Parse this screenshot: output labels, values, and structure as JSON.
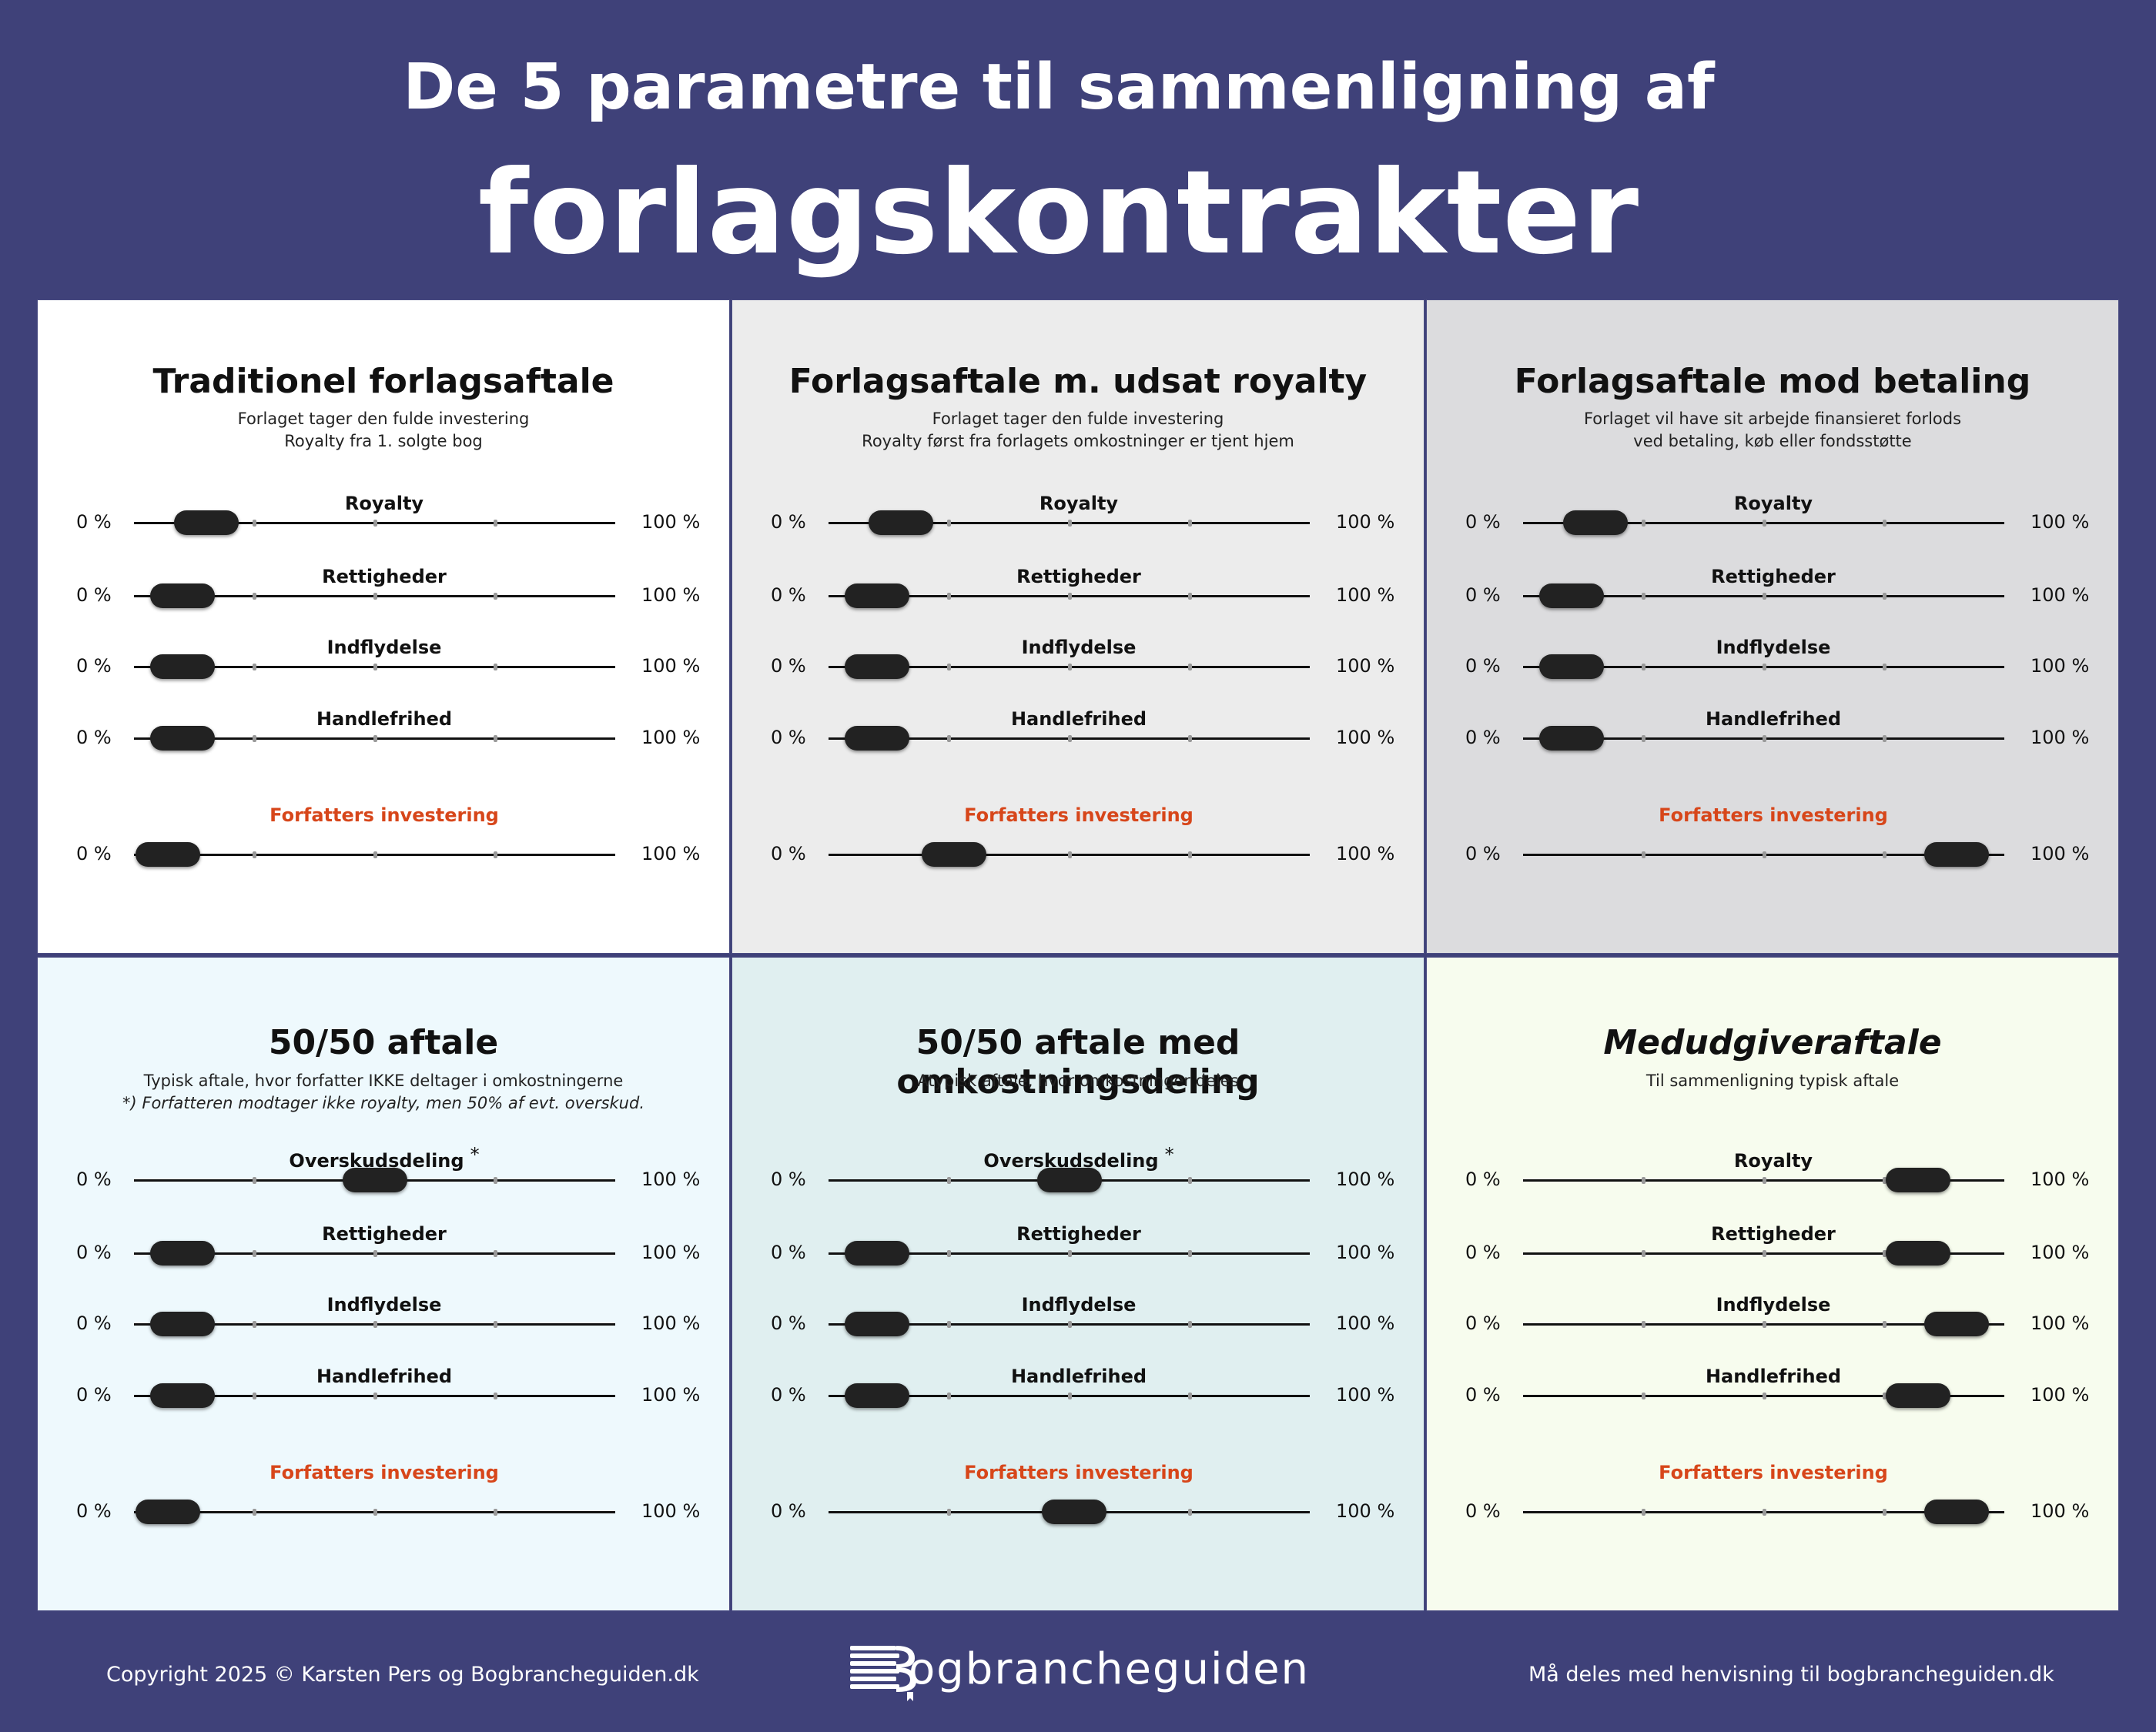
{
  "header": {
    "subtitle": "De 5 parametre til sammenligning af",
    "title": "forlagskontrakter"
  },
  "labels": {
    "zero": "0 %",
    "hundred": "100 %"
  },
  "panels": [
    {
      "title": "Traditionel forlagsaftale",
      "desc1": "Forlaget tager den fulde investering",
      "desc2": "Royalty fra 1. solgte bog",
      "bg": "#ffffff",
      "rows": [
        {
          "label": "Royalty",
          "value": 15
        },
        {
          "label": "Rettigheder",
          "value": 10
        },
        {
          "label": "Indflydelse",
          "value": 10
        },
        {
          "label": "Handlefrihed",
          "value": 10
        },
        {
          "label": "Forfatters investering",
          "value": 7,
          "invest": true
        }
      ]
    },
    {
      "title": "Forlagsaftale m. udsat royalty",
      "desc1": "Forlaget tager den fulde investering",
      "desc2": "Royalty først fra forlagets omkostninger er tjent hjem",
      "bg": "#ececec",
      "rows": [
        {
          "label": "Royalty",
          "value": 15
        },
        {
          "label": "Rettigheder",
          "value": 10
        },
        {
          "label": "Indflydelse",
          "value": 10
        },
        {
          "label": "Handlefrihed",
          "value": 10
        },
        {
          "label": "Forfatters investering",
          "value": 26,
          "invest": true
        }
      ]
    },
    {
      "title": "Forlagsaftale mod betaling",
      "desc1": "Forlaget vil have sit arbejde finansieret forlods",
      "desc2": "ved betaling, køb eller fondsstøtte",
      "bg": "#dcdcde",
      "rows": [
        {
          "label": "Royalty",
          "value": 15
        },
        {
          "label": "Rettigheder",
          "value": 10
        },
        {
          "label": "Indflydelse",
          "value": 10
        },
        {
          "label": "Handlefrihed",
          "value": 10
        },
        {
          "label": "Forfatters investering",
          "value": 90,
          "invest": true
        }
      ]
    },
    {
      "title": "50/50 aftale",
      "desc1": "Typisk aftale, hvor forfatter IKKE deltager i omkostningerne",
      "desc2": "*) Forfatteren modtager ikke royalty, men 50% af evt. overskud.",
      "desc2_italic": true,
      "bg": "#eef9fd",
      "rows": [
        {
          "label": "Overskudsdeling",
          "value": 50,
          "star": "*"
        },
        {
          "label": "Rettigheder",
          "value": 10
        },
        {
          "label": "Indflydelse",
          "value": 10
        },
        {
          "label": "Handlefrihed",
          "value": 10
        },
        {
          "label": "Forfatters investering",
          "value": 7,
          "invest": true
        }
      ]
    },
    {
      "title": "50/50 aftale med omkostningsdeling",
      "desc1": "Atypisk aftale, hvor omkostninger deles",
      "desc2": "",
      "bg": "#e0eff0",
      "rows": [
        {
          "label": "Overskudsdeling",
          "value": 50,
          "star": "*"
        },
        {
          "label": "Rettigheder",
          "value": 10
        },
        {
          "label": "Indflydelse",
          "value": 10
        },
        {
          "label": "Handlefrihed",
          "value": 10
        },
        {
          "label": "Forfatters investering",
          "value": 51,
          "invest": true
        }
      ]
    },
    {
      "title": "Medudgiveraftale",
      "title_italic": true,
      "desc1": "Til sammenligning typisk aftale",
      "desc2": "",
      "bg": "#f7fcee",
      "rows": [
        {
          "label": "Royalty",
          "value": 82
        },
        {
          "label": "Rettigheder",
          "value": 82
        },
        {
          "label": "Indflydelse",
          "value": 90
        },
        {
          "label": "Handlefrihed",
          "value": 82
        },
        {
          "label": "Forfatters investering",
          "value": 90,
          "invest": true
        }
      ]
    }
  ],
  "footer": {
    "copyright": "Copyright 2025 © Karsten Pers og Bogbrancheguiden.dk",
    "logo_text": "ogbrancheguiden",
    "logo_letter": "B",
    "share_note": "Må deles med henvisning til bogbrancheguiden.dk"
  }
}
